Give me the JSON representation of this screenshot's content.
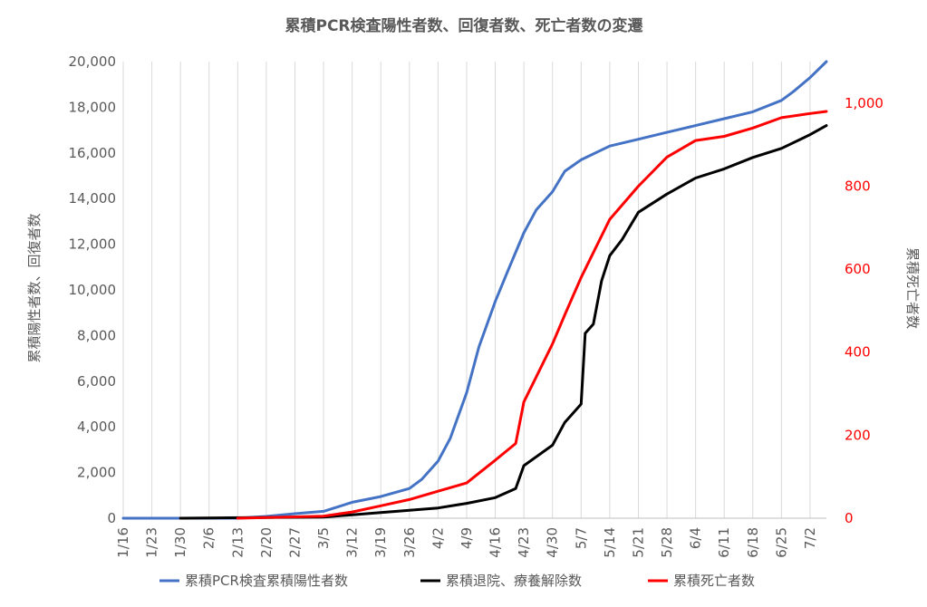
{
  "chart_data": {
    "type": "line",
    "title": "累積PCR検査陽性者数、回復者数、死亡者数の変遷",
    "ylabel_left": "累積陽性者数、回復者数",
    "ylabel_right": "累積死亡者数",
    "ylim_left": [
      0,
      20000
    ],
    "ylim_right": [
      0,
      1100
    ],
    "yticks_left": [
      "0",
      "2,000",
      "4,000",
      "6,000",
      "8,000",
      "10,000",
      "12,000",
      "14,000",
      "16,000",
      "18,000",
      "20,000"
    ],
    "yticks_right": [
      "0",
      "200",
      "400",
      "600",
      "800",
      "1,000"
    ],
    "yticks_left_values": [
      0,
      2000,
      4000,
      6000,
      8000,
      10000,
      12000,
      14000,
      16000,
      18000,
      20000
    ],
    "yticks_right_values": [
      0,
      200,
      400,
      600,
      800,
      1000
    ],
    "xticks": [
      "1/16",
      "1/23",
      "1/30",
      "2/6",
      "2/13",
      "2/20",
      "2/27",
      "3/5",
      "3/12",
      "3/19",
      "3/26",
      "4/2",
      "4/9",
      "4/16",
      "4/23",
      "4/30",
      "5/7",
      "5/14",
      "5/21",
      "5/28",
      "6/4",
      "6/11",
      "6/18",
      "6/25",
      "7/2"
    ],
    "x_start": "2020-01-16",
    "x_end": "2020-07-06",
    "grid": "vertical",
    "legend_position": "bottom",
    "series": [
      {
        "name": "累積PCR検査累積陽性者数",
        "axis": "left",
        "color": "#4472c4",
        "points": [
          [
            "1/16",
            0
          ],
          [
            "2/13",
            0
          ],
          [
            "2/20",
            80
          ],
          [
            "2/27",
            200
          ],
          [
            "3/5",
            300
          ],
          [
            "3/12",
            700
          ],
          [
            "3/19",
            950
          ],
          [
            "3/26",
            1300
          ],
          [
            "3/29",
            1700
          ],
          [
            "4/2",
            2500
          ],
          [
            "4/5",
            3500
          ],
          [
            "4/9",
            5500
          ],
          [
            "4/12",
            7500
          ],
          [
            "4/16",
            9500
          ],
          [
            "4/19",
            10800
          ],
          [
            "4/23",
            12500
          ],
          [
            "4/26",
            13500
          ],
          [
            "4/30",
            14300
          ],
          [
            "5/3",
            15200
          ],
          [
            "5/7",
            15700
          ],
          [
            "5/14",
            16300
          ],
          [
            "5/21",
            16600
          ],
          [
            "5/28",
            16900
          ],
          [
            "6/4",
            17200
          ],
          [
            "6/11",
            17500
          ],
          [
            "6/18",
            17800
          ],
          [
            "6/25",
            18300
          ],
          [
            "6/28",
            18700
          ],
          [
            "7/2",
            19300
          ],
          [
            "7/6",
            20000
          ]
        ]
      },
      {
        "name": "累積退院、療養解除数",
        "axis": "left",
        "color": "#000000",
        "points": [
          [
            "1/30",
            0
          ],
          [
            "3/5",
            50
          ],
          [
            "3/12",
            150
          ],
          [
            "3/19",
            250
          ],
          [
            "3/26",
            350
          ],
          [
            "4/2",
            450
          ],
          [
            "4/9",
            650
          ],
          [
            "4/16",
            900
          ],
          [
            "4/21",
            1300
          ],
          [
            "4/23",
            2300
          ],
          [
            "4/30",
            3200
          ],
          [
            "5/3",
            4200
          ],
          [
            "5/7",
            5000
          ],
          [
            "5/8",
            8100
          ],
          [
            "5/10",
            8500
          ],
          [
            "5/12",
            10400
          ],
          [
            "5/14",
            11500
          ],
          [
            "5/17",
            12200
          ],
          [
            "5/21",
            13400
          ],
          [
            "5/28",
            14200
          ],
          [
            "6/4",
            14900
          ],
          [
            "6/11",
            15300
          ],
          [
            "6/18",
            15800
          ],
          [
            "6/25",
            16200
          ],
          [
            "7/2",
            16800
          ],
          [
            "7/6",
            17200
          ]
        ]
      },
      {
        "name": "累積死亡者数",
        "axis": "right",
        "color": "#ff0000",
        "points": [
          [
            "2/13",
            0
          ],
          [
            "3/5",
            5
          ],
          [
            "3/12",
            15
          ],
          [
            "3/19",
            30
          ],
          [
            "3/26",
            45
          ],
          [
            "4/2",
            65
          ],
          [
            "4/9",
            85
          ],
          [
            "4/16",
            140
          ],
          [
            "4/21",
            180
          ],
          [
            "4/23",
            280
          ],
          [
            "4/26",
            340
          ],
          [
            "4/30",
            420
          ],
          [
            "5/3",
            490
          ],
          [
            "5/7",
            580
          ],
          [
            "5/10",
            640
          ],
          [
            "5/14",
            720
          ],
          [
            "5/21",
            800
          ],
          [
            "5/28",
            870
          ],
          [
            "6/4",
            910
          ],
          [
            "6/11",
            920
          ],
          [
            "6/18",
            940
          ],
          [
            "6/25",
            965
          ],
          [
            "7/2",
            975
          ],
          [
            "7/6",
            980
          ]
        ]
      }
    ]
  }
}
